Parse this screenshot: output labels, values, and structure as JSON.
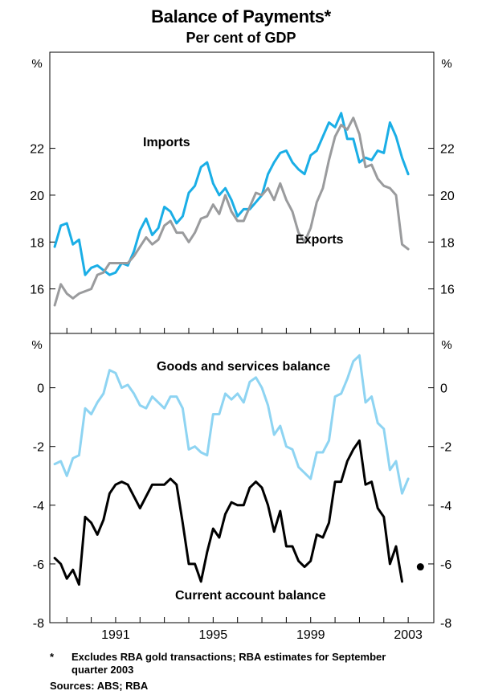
{
  "title": "Balance of Payments*",
  "subtitle": "Per cent of GDP",
  "footnote_marker": "*",
  "footnote_text": "Excludes RBA gold transactions; RBA estimates for September quarter 2003",
  "sources": "Sources: ABS; RBA",
  "colors": {
    "imports": "#1aaee6",
    "exports": "#9a9b9d",
    "goods_services": "#8ed4f2",
    "current_account": "#000000",
    "frame": "#000000"
  },
  "chart_data": [
    {
      "type": "line",
      "panel": "top",
      "unit_label": "%",
      "ylim": [
        14.1,
        26.1
      ],
      "yticks": [
        16,
        18,
        20,
        22
      ],
      "xlim": [
        1988.3,
        2004.05
      ],
      "xtick_values": [
        1991,
        1995,
        1999,
        2003
      ],
      "xtick_labels": [
        "1991",
        "1995",
        "1999",
        "2003"
      ],
      "series": [
        {
          "name": "Imports",
          "color_key": "imports",
          "start": 1988.5,
          "step": 0.25,
          "values": [
            17.8,
            18.7,
            18.8,
            17.9,
            18.1,
            16.6,
            16.9,
            17.0,
            16.8,
            16.6,
            16.7,
            17.1,
            17.0,
            17.6,
            18.5,
            19.0,
            18.3,
            18.6,
            19.5,
            19.3,
            18.8,
            19.1,
            20.1,
            20.4,
            21.2,
            21.4,
            20.5,
            20.0,
            20.3,
            19.8,
            19.1,
            19.4,
            19.4,
            19.7,
            20.0,
            20.9,
            21.4,
            21.8,
            21.9,
            21.4,
            21.1,
            20.9,
            21.7,
            21.9,
            22.5,
            23.1,
            22.9,
            23.5,
            22.4,
            22.4,
            21.4,
            21.6,
            21.5,
            21.9,
            21.8,
            23.1,
            22.5,
            21.6,
            20.9
          ]
        },
        {
          "name": "Exports",
          "color_key": "exports",
          "start": 1988.5,
          "step": 0.25,
          "values": [
            15.3,
            16.2,
            15.8,
            15.6,
            15.8,
            15.9,
            16.0,
            16.6,
            16.7,
            17.1,
            17.1,
            17.1,
            17.1,
            17.4,
            17.8,
            18.2,
            17.9,
            18.1,
            18.7,
            18.9,
            18.4,
            18.4,
            18.0,
            18.4,
            19.0,
            19.1,
            19.6,
            19.2,
            20.0,
            19.3,
            18.9,
            18.9,
            19.5,
            20.1,
            20.0,
            20.3,
            19.8,
            20.5,
            19.8,
            19.3,
            18.4,
            18.0,
            18.6,
            19.7,
            20.3,
            21.5,
            22.5,
            23.0,
            22.8,
            23.3,
            22.6,
            21.2,
            21.3,
            20.7,
            20.4,
            20.3,
            20.0,
            17.9,
            17.7
          ]
        }
      ],
      "annotations": [
        "Imports",
        "Exports"
      ]
    },
    {
      "type": "line",
      "panel": "bottom",
      "unit_label": "%",
      "ylim": [
        -8,
        1.85
      ],
      "yticks": [
        -8,
        -6,
        -4,
        -2,
        0
      ],
      "xlim": [
        1988.3,
        2004.05
      ],
      "xtick_values": [
        1991,
        1995,
        1999,
        2003
      ],
      "xtick_labels": [
        "1991",
        "1995",
        "1999",
        "2003"
      ],
      "series": [
        {
          "name": "Goods and services balance",
          "color_key": "goods_services",
          "start": 1988.5,
          "step": 0.25,
          "values": [
            -2.6,
            -2.5,
            -3.0,
            -2.4,
            -2.3,
            -0.7,
            -0.9,
            -0.5,
            -0.2,
            0.6,
            0.5,
            0.0,
            0.1,
            -0.2,
            -0.6,
            -0.7,
            -0.3,
            -0.5,
            -0.7,
            -0.3,
            -0.3,
            -0.7,
            -2.1,
            -2.0,
            -2.2,
            -2.3,
            -0.9,
            -0.9,
            -0.2,
            -0.4,
            -0.2,
            -0.5,
            0.2,
            0.35,
            0.0,
            -0.6,
            -1.6,
            -1.3,
            -2.0,
            -2.1,
            -2.7,
            -2.9,
            -3.1,
            -2.2,
            -2.2,
            -1.8,
            -0.3,
            -0.2,
            0.3,
            0.9,
            1.1,
            -0.5,
            -0.3,
            -1.2,
            -1.4,
            -2.8,
            -2.5,
            -3.6,
            -3.1
          ]
        },
        {
          "name": "Current account balance",
          "color_key": "current_account",
          "start": 1988.5,
          "step": 0.25,
          "values": [
            -5.8,
            -6.0,
            -6.5,
            -6.2,
            -6.7,
            -4.4,
            -4.6,
            -5.0,
            -4.5,
            -3.6,
            -3.3,
            -3.2,
            -3.3,
            -3.7,
            -4.1,
            -3.7,
            -3.3,
            -3.3,
            -3.3,
            -3.1,
            -3.3,
            -4.6,
            -6.0,
            -6.0,
            -6.6,
            -5.6,
            -4.8,
            -5.1,
            -4.3,
            -3.9,
            -4.0,
            -4.0,
            -3.4,
            -3.2,
            -3.4,
            -4.0,
            -4.9,
            -4.2,
            -5.4,
            -5.4,
            -5.9,
            -6.1,
            -5.9,
            -5.0,
            -5.1,
            -4.6,
            -3.2,
            -3.2,
            -2.5,
            -2.1,
            -1.8,
            -3.3,
            -3.2,
            -4.1,
            -4.4,
            -6.0,
            -5.4,
            -6.6
          ]
        }
      ],
      "estimate_point": {
        "series": "Current account balance",
        "x": 2003.5,
        "y": -6.1
      },
      "annotations": [
        "Goods and services balance",
        "Current account balance"
      ]
    }
  ]
}
